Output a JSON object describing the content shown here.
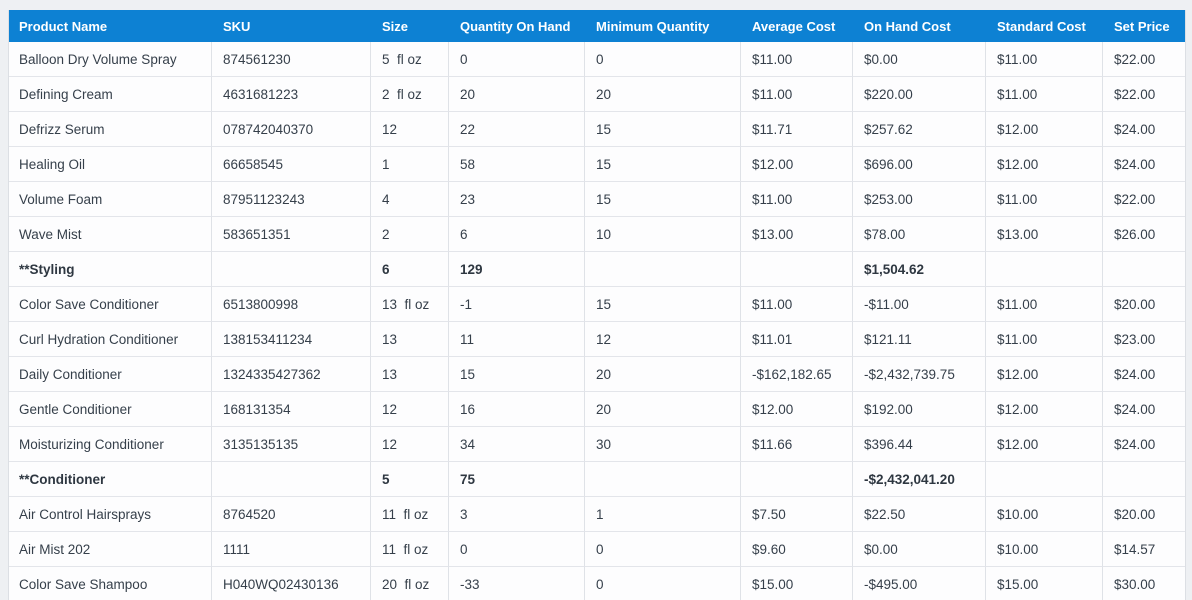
{
  "colors": {
    "header_bg": "#0d81d3",
    "header_text": "#ffffff",
    "body_text": "#353f4a",
    "grid_border": "#dfe2e7",
    "page_bg": "#eef0f3",
    "row_bg": "#fdfdfe"
  },
  "table": {
    "columns": [
      {
        "key": "product",
        "label": "Product Name"
      },
      {
        "key": "sku",
        "label": "SKU"
      },
      {
        "key": "size",
        "label": "Size"
      },
      {
        "key": "qty_on_hand",
        "label": "Quantity On Hand"
      },
      {
        "key": "min_qty",
        "label": "Minimum Quantity"
      },
      {
        "key": "avg_cost",
        "label": "Average Cost"
      },
      {
        "key": "on_hand_cost",
        "label": "On Hand Cost"
      },
      {
        "key": "std_cost",
        "label": "Standard Cost"
      },
      {
        "key": "set_price",
        "label": "Set Price"
      }
    ],
    "rows": [
      {
        "type": "item",
        "product": "Balloon Dry Volume Spray",
        "sku": "874561230",
        "size": "5  fl oz",
        "qty_on_hand": "0",
        "min_qty": "0",
        "avg_cost": "$11.00",
        "on_hand_cost": "$0.00",
        "std_cost": "$11.00",
        "set_price": "$22.00"
      },
      {
        "type": "item",
        "product": "Defining Cream",
        "sku": "4631681223",
        "size": "2  fl oz",
        "qty_on_hand": "20",
        "min_qty": "20",
        "avg_cost": "$11.00",
        "on_hand_cost": "$220.00",
        "std_cost": "$11.00",
        "set_price": "$22.00"
      },
      {
        "type": "item",
        "product": "Defrizz Serum",
        "sku": "078742040370",
        "size": "12",
        "qty_on_hand": "22",
        "min_qty": "15",
        "avg_cost": "$11.71",
        "on_hand_cost": "$257.62",
        "std_cost": "$12.00",
        "set_price": "$24.00"
      },
      {
        "type": "item",
        "product": "Healing Oil",
        "sku": "66658545",
        "size": "1",
        "qty_on_hand": "58",
        "min_qty": "15",
        "avg_cost": "$12.00",
        "on_hand_cost": "$696.00",
        "std_cost": "$12.00",
        "set_price": "$24.00"
      },
      {
        "type": "item",
        "product": "Volume Foam",
        "sku": "87951123243",
        "size": "4",
        "qty_on_hand": "23",
        "min_qty": "15",
        "avg_cost": "$11.00",
        "on_hand_cost": "$253.00",
        "std_cost": "$11.00",
        "set_price": "$22.00"
      },
      {
        "type": "item",
        "product": "Wave Mist",
        "sku": "583651351",
        "size": "2",
        "qty_on_hand": "6",
        "min_qty": "10",
        "avg_cost": "$13.00",
        "on_hand_cost": "$78.00",
        "std_cost": "$13.00",
        "set_price": "$26.00"
      },
      {
        "type": "summary",
        "product": "**Styling",
        "sku": "",
        "size": "6",
        "qty_on_hand": "129",
        "min_qty": "",
        "avg_cost": "",
        "on_hand_cost": "$1,504.62",
        "std_cost": "",
        "set_price": ""
      },
      {
        "type": "item",
        "product": "Color Save Conditioner",
        "sku": "6513800998",
        "size": "13  fl oz",
        "qty_on_hand": "-1",
        "min_qty": "15",
        "avg_cost": "$11.00",
        "on_hand_cost": "-$11.00",
        "std_cost": "$11.00",
        "set_price": "$20.00"
      },
      {
        "type": "item",
        "product": "Curl Hydration Conditioner",
        "sku": "138153411234",
        "size": "13",
        "qty_on_hand": "11",
        "min_qty": "12",
        "avg_cost": "$11.01",
        "on_hand_cost": "$121.11",
        "std_cost": "$11.00",
        "set_price": "$23.00"
      },
      {
        "type": "item",
        "product": "Daily Conditioner",
        "sku": "1324335427362",
        "size": "13",
        "qty_on_hand": "15",
        "min_qty": "20",
        "avg_cost": "-$162,182.65",
        "on_hand_cost": "-$2,432,739.75",
        "std_cost": "$12.00",
        "set_price": "$24.00"
      },
      {
        "type": "item",
        "product": "Gentle Conditioner",
        "sku": "168131354",
        "size": "12",
        "qty_on_hand": "16",
        "min_qty": "20",
        "avg_cost": "$12.00",
        "on_hand_cost": "$192.00",
        "std_cost": "$12.00",
        "set_price": "$24.00"
      },
      {
        "type": "item",
        "product": "Moisturizing Conditioner",
        "sku": "3135135135",
        "size": "12",
        "qty_on_hand": "34",
        "min_qty": "30",
        "avg_cost": "$11.66",
        "on_hand_cost": "$396.44",
        "std_cost": "$12.00",
        "set_price": "$24.00"
      },
      {
        "type": "summary",
        "product": "**Conditioner",
        "sku": "",
        "size": "5",
        "qty_on_hand": "75",
        "min_qty": "",
        "avg_cost": "",
        "on_hand_cost": "-$2,432,041.20",
        "std_cost": "",
        "set_price": ""
      },
      {
        "type": "item",
        "product": "Air Control Hairsprays",
        "sku": "8764520",
        "size": "11  fl oz",
        "qty_on_hand": "3",
        "min_qty": "1",
        "avg_cost": "$7.50",
        "on_hand_cost": "$22.50",
        "std_cost": "$10.00",
        "set_price": "$20.00"
      },
      {
        "type": "item",
        "product": "Air Mist 202",
        "sku": "1111",
        "size": "11  fl oz",
        "qty_on_hand": "0",
        "min_qty": "0",
        "avg_cost": "$9.60",
        "on_hand_cost": "$0.00",
        "std_cost": "$10.00",
        "set_price": "$14.57"
      },
      {
        "type": "item",
        "product": "Color Save Shampoo",
        "sku": "H040WQ02430136",
        "size": "20  fl oz",
        "qty_on_hand": "-33",
        "min_qty": "0",
        "avg_cost": "$15.00",
        "on_hand_cost": "-$495.00",
        "std_cost": "$15.00",
        "set_price": "$30.00"
      }
    ]
  }
}
